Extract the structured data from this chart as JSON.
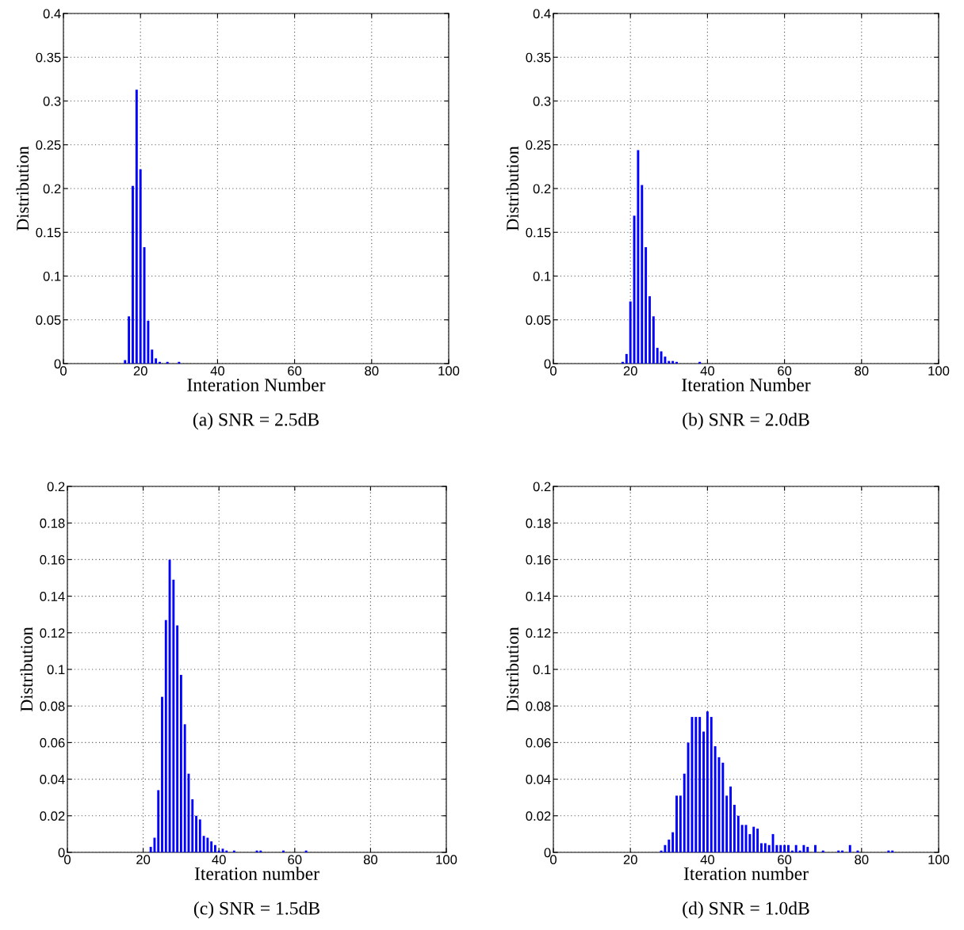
{
  "chart_data": [
    {
      "type": "bar",
      "title": "(a) SNR = 2.5dB",
      "xlabel": "Interation Number",
      "ylabel": "Distribution",
      "color": "#0000ff",
      "grid": true,
      "x": [
        16,
        17,
        18,
        19,
        20,
        21,
        22,
        23,
        24,
        25,
        27,
        30
      ],
      "values": [
        0.004,
        0.054,
        0.203,
        0.313,
        0.222,
        0.133,
        0.049,
        0.016,
        0.006,
        0.002,
        0.002,
        0.002
      ],
      "xlim": [
        0,
        100
      ],
      "xticks": [
        0,
        20,
        40,
        60,
        80,
        100
      ],
      "ylim": [
        0,
        0.4
      ],
      "yticks": [
        0,
        0.05,
        0.1,
        0.15,
        0.2,
        0.25,
        0.3,
        0.35,
        0.4
      ]
    },
    {
      "type": "bar",
      "title": "(b) SNR = 2.0dB",
      "xlabel": "Iteration Number",
      "ylabel": "Distribution",
      "color": "#0000ff",
      "grid": true,
      "x": [
        18,
        19,
        20,
        21,
        22,
        23,
        24,
        25,
        26,
        27,
        28,
        29,
        30,
        31,
        32,
        38
      ],
      "values": [
        0.002,
        0.011,
        0.071,
        0.169,
        0.244,
        0.204,
        0.133,
        0.077,
        0.054,
        0.018,
        0.014,
        0.008,
        0.003,
        0.003,
        0.002,
        0.002
      ],
      "xlim": [
        0,
        100
      ],
      "xticks": [
        0,
        20,
        40,
        60,
        80,
        100
      ],
      "ylim": [
        0,
        0.4
      ],
      "yticks": [
        0,
        0.05,
        0.1,
        0.15,
        0.2,
        0.25,
        0.3,
        0.35,
        0.4
      ]
    },
    {
      "type": "bar",
      "title": "(c) SNR = 1.5dB",
      "xlabel": "Iteration number",
      "ylabel": "Distribution",
      "color": "#0000ff",
      "grid": true,
      "x": [
        22,
        23,
        24,
        25,
        26,
        27,
        28,
        29,
        30,
        31,
        32,
        33,
        34,
        35,
        36,
        37,
        38,
        39,
        40,
        41,
        42,
        44,
        50,
        51,
        57,
        63
      ],
      "values": [
        0.003,
        0.008,
        0.034,
        0.085,
        0.127,
        0.16,
        0.149,
        0.124,
        0.097,
        0.07,
        0.043,
        0.029,
        0.02,
        0.018,
        0.009,
        0.008,
        0.006,
        0.004,
        0.001,
        0.002,
        0.001,
        0.001,
        0.001,
        0.001,
        0.001,
        0.001
      ],
      "xlim": [
        0,
        100
      ],
      "xticks": [
        0,
        20,
        40,
        60,
        80,
        100
      ],
      "ylim": [
        0,
        0.2
      ],
      "yticks": [
        0,
        0.02,
        0.04,
        0.06,
        0.08,
        0.1,
        0.12,
        0.14,
        0.16,
        0.18,
        0.2
      ]
    },
    {
      "type": "bar",
      "title": "(d) SNR = 1.0dB",
      "xlabel": "Iteration number",
      "ylabel": "Distribution",
      "color": "#0000ff",
      "grid": true,
      "x": [
        28,
        29,
        30,
        31,
        32,
        33,
        34,
        35,
        36,
        37,
        38,
        39,
        40,
        41,
        42,
        43,
        44,
        45,
        46,
        47,
        48,
        49,
        50,
        51,
        52,
        53,
        54,
        55,
        56,
        57,
        58,
        59,
        60,
        61,
        62,
        63,
        64,
        65,
        66,
        68,
        70,
        74,
        75,
        77,
        79,
        87,
        88
      ],
      "values": [
        0.001,
        0.004,
        0.007,
        0.011,
        0.031,
        0.031,
        0.043,
        0.06,
        0.074,
        0.074,
        0.074,
        0.066,
        0.077,
        0.074,
        0.058,
        0.052,
        0.049,
        0.031,
        0.036,
        0.026,
        0.02,
        0.015,
        0.015,
        0.01,
        0.014,
        0.013,
        0.005,
        0.005,
        0.004,
        0.01,
        0.004,
        0.004,
        0.004,
        0.004,
        0.001,
        0.004,
        0.001,
        0.004,
        0.003,
        0.004,
        0.001,
        0.001,
        0.001,
        0.004,
        0.001,
        0.001,
        0.001
      ],
      "xlim": [
        0,
        100
      ],
      "xticks": [
        0,
        20,
        40,
        60,
        80,
        100
      ],
      "ylim": [
        0,
        0.2
      ],
      "yticks": [
        0,
        0.02,
        0.04,
        0.06,
        0.08,
        0.1,
        0.12,
        0.14,
        0.16,
        0.18,
        0.2
      ]
    }
  ]
}
